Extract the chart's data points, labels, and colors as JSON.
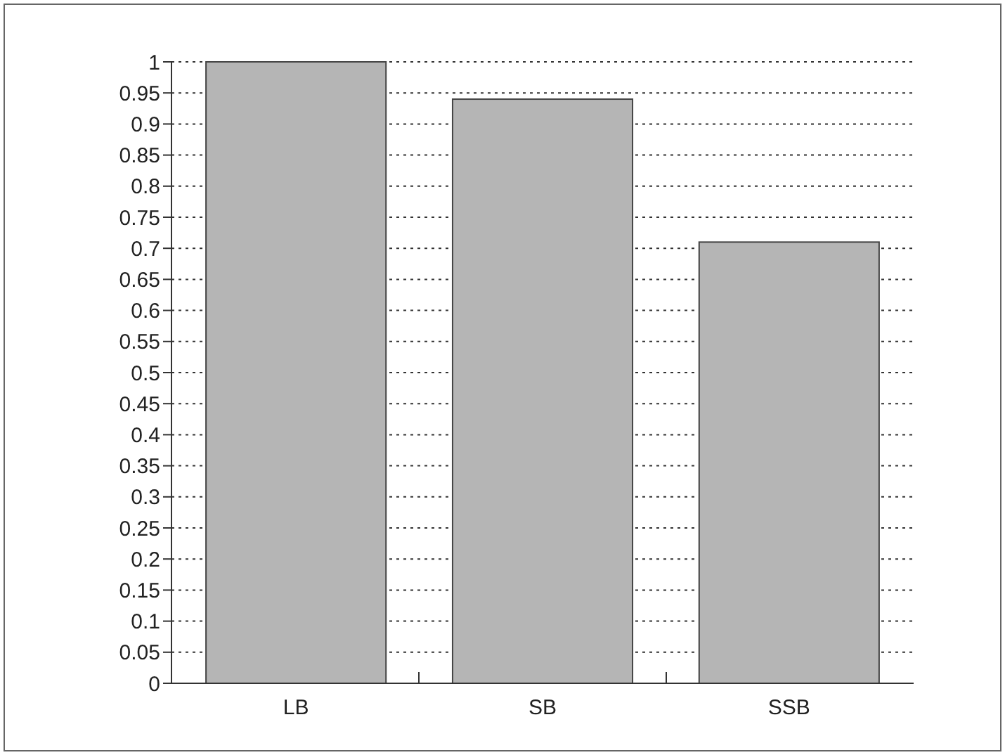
{
  "chart_data": {
    "type": "bar",
    "categories": [
      "LB",
      "SB",
      "SSB"
    ],
    "values": [
      1,
      0.94,
      0.71
    ],
    "color": "#b5b5b5",
    "ylim": [
      0,
      1
    ],
    "yticks": [
      0,
      0.05,
      0.1,
      0.15,
      0.2,
      0.25,
      0.3,
      0.35,
      0.4,
      0.45,
      0.5,
      0.55,
      0.6,
      0.65,
      0.7,
      0.75,
      0.8,
      0.85,
      0.9,
      0.95,
      1
    ],
    "grid": "y"
  }
}
